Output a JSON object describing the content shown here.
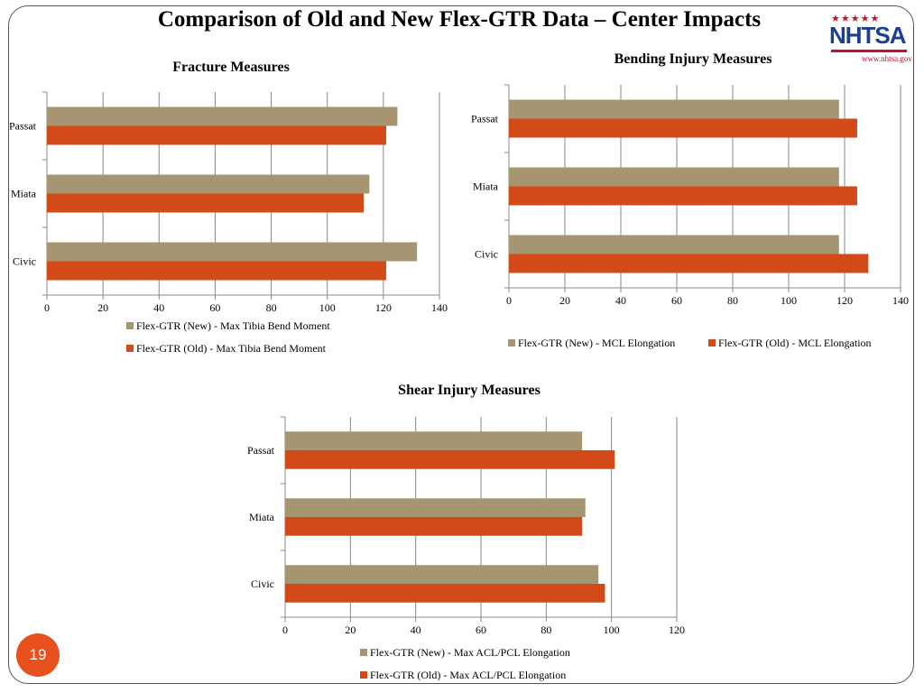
{
  "slide": {
    "title": "Comparison of Old and New Flex-GTR Data – Center Impacts",
    "page_number": "19"
  },
  "logo": {
    "stars": "★★★★★",
    "name": "NHTSA",
    "url": "www.nhtsa.gov"
  },
  "colors": {
    "new": "#a59570",
    "old": "#d24a17",
    "grid": "#888888",
    "axis": "#888888"
  },
  "chart_data": [
    {
      "type": "bar",
      "orientation": "horizontal",
      "title": "Fracture Measures",
      "categories": [
        "Passat",
        "Miata",
        "Civic"
      ],
      "xlim": [
        0,
        140
      ],
      "xticks": [
        0,
        20,
        40,
        60,
        80,
        100,
        120,
        140
      ],
      "grid": true,
      "legend": "bottom-stacked",
      "series": [
        {
          "name": "Flex-GTR (New) - Max Tibia Bend Moment",
          "values": [
            125,
            115,
            132
          ]
        },
        {
          "name": "Flex-GTR (Old) - Max Tibia Bend Moment",
          "values": [
            121,
            113,
            121
          ]
        }
      ]
    },
    {
      "type": "bar",
      "orientation": "horizontal",
      "title": "Bending Injury Measures",
      "categories": [
        "Passat",
        "Miata",
        "Civic"
      ],
      "xlim": [
        0,
        140
      ],
      "xticks": [
        0,
        20,
        40,
        60,
        80,
        100,
        120,
        140
      ],
      "grid": true,
      "legend": "bottom-inline",
      "series": [
        {
          "name": "Flex-GTR (New) - MCL Elongation",
          "values": [
            118,
            118,
            118
          ]
        },
        {
          "name": "Flex-GTR (Old) - MCL Elongation",
          "values": [
            124.5,
            124.5,
            128.5
          ]
        }
      ]
    },
    {
      "type": "bar",
      "orientation": "horizontal",
      "title": "Shear Injury Measures",
      "categories": [
        "Passat",
        "Miata",
        "Civic"
      ],
      "xlim": [
        0,
        120
      ],
      "xticks": [
        0,
        20,
        40,
        60,
        80,
        100,
        120
      ],
      "grid": true,
      "legend": "bottom-stacked",
      "series": [
        {
          "name": "Flex-GTR (New) - Max ACL/PCL Elongation",
          "values": [
            91,
            92,
            96
          ]
        },
        {
          "name": "Flex-GTR (Old) - Max ACL/PCL Elongation",
          "values": [
            101,
            91,
            98
          ]
        }
      ]
    }
  ]
}
